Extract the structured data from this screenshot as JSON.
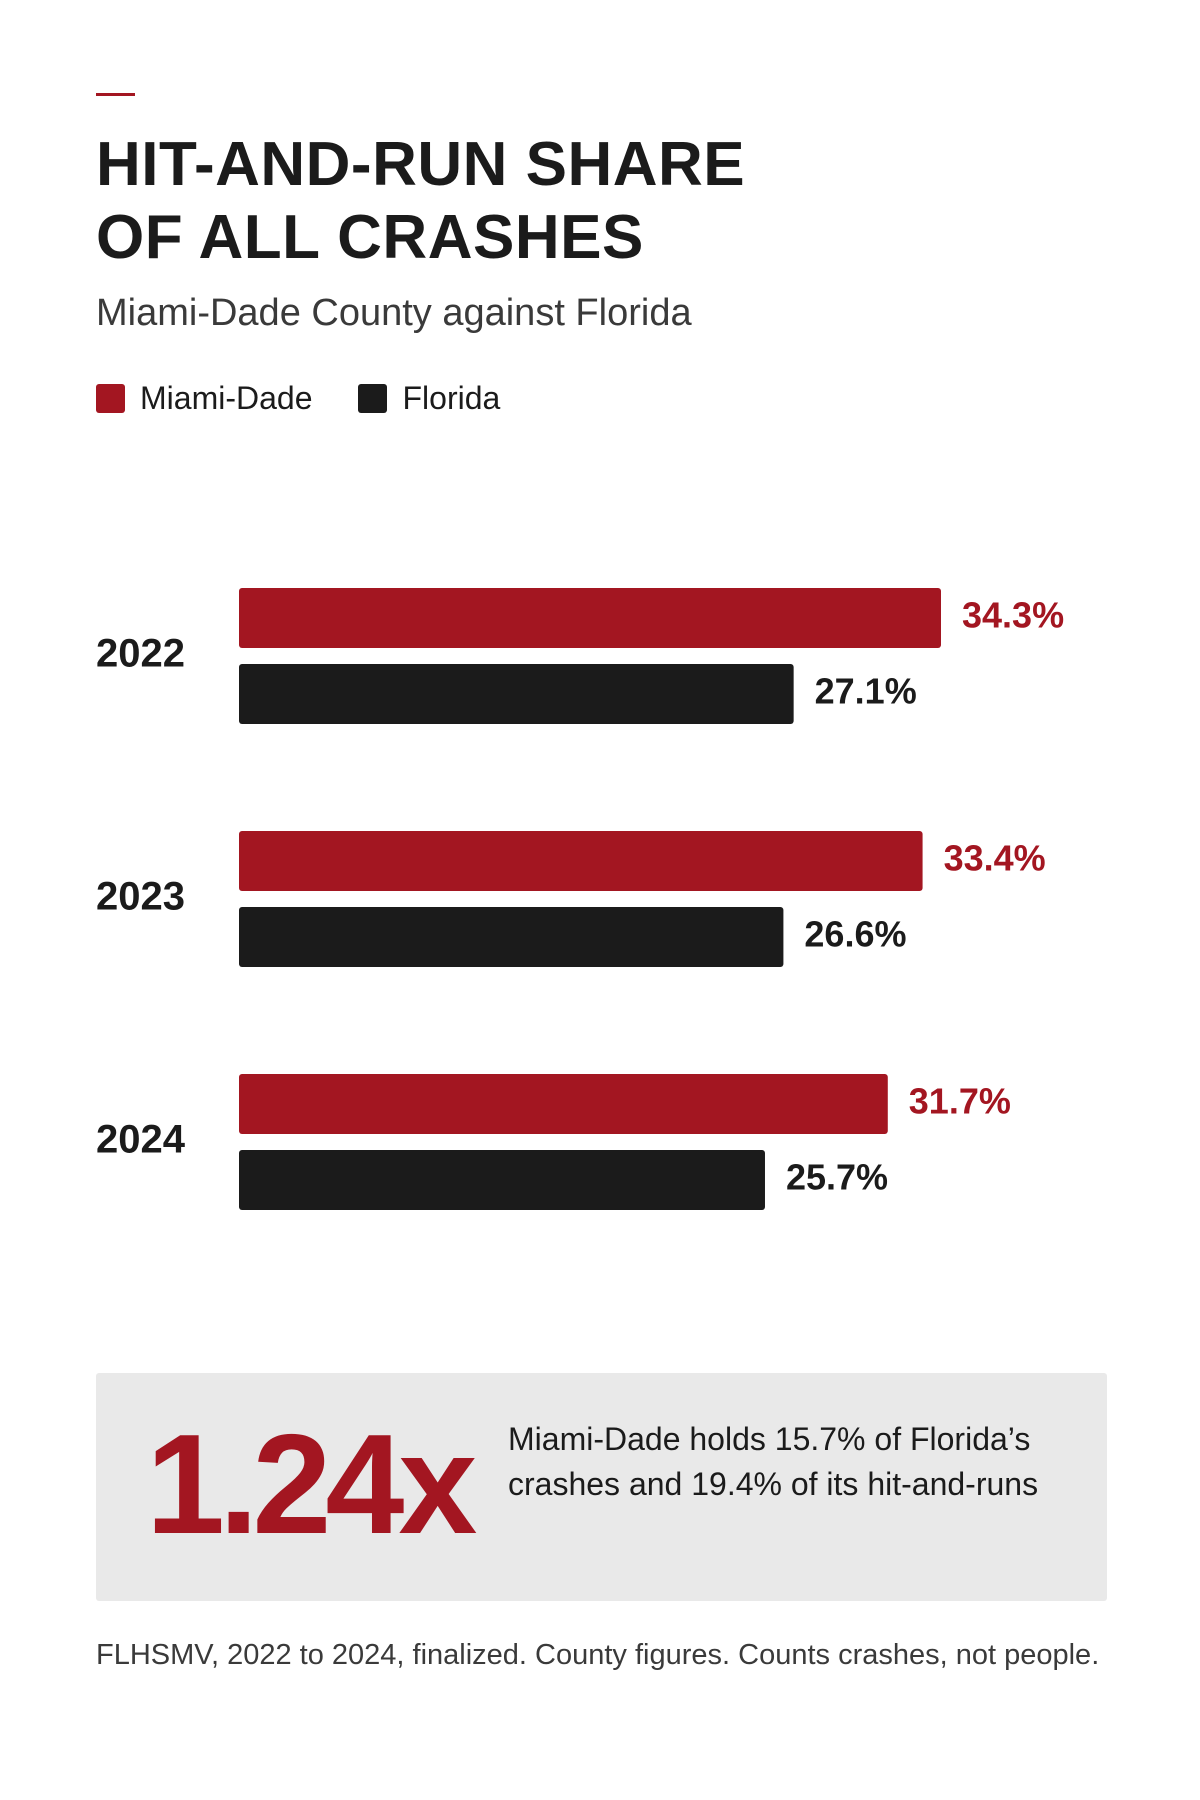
{
  "header": {
    "title_line1": "HIT-AND-RUN SHARE",
    "title_line2": "OF ALL CRASHES",
    "subtitle": "Miami-Dade County against Florida"
  },
  "colors": {
    "accent": "#a31621",
    "dark": "#1b1b1b",
    "panel": "#e9e9e9"
  },
  "legend": [
    {
      "label": "Miami-Dade",
      "color": "#a31621"
    },
    {
      "label": "Florida",
      "color": "#1b1b1b"
    }
  ],
  "chart_data": {
    "type": "bar",
    "orientation": "horizontal",
    "title": "HIT-AND-RUN SHARE OF ALL CRASHES",
    "subtitle": "Miami-Dade County against Florida",
    "categories": [
      "2022",
      "2023",
      "2024"
    ],
    "series": [
      {
        "name": "Miami-Dade",
        "color": "#a31621",
        "values": [
          34.3,
          33.4,
          31.7
        ],
        "labels": [
          "34.3%",
          "33.4%",
          "31.7%"
        ]
      },
      {
        "name": "Florida",
        "color": "#1b1b1b",
        "values": [
          27.1,
          26.6,
          25.7
        ],
        "labels": [
          "27.1%",
          "26.6%",
          "25.7%"
        ]
      }
    ],
    "xlim": [
      0,
      34.3
    ],
    "grid": false,
    "legend_position": "top-left"
  },
  "stat": {
    "value": "1.24x",
    "text": "Miami-Dade holds 15.7% of Florida’s crashes and 19.4% of its hit-and-runs"
  },
  "footnote": "FLHSMV, 2022 to 2024, finalized. County figures. Counts crashes, not people."
}
